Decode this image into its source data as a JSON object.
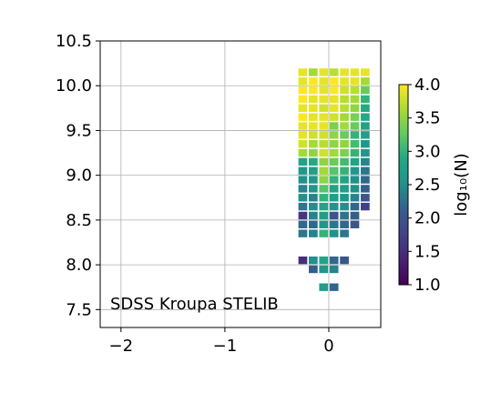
{
  "chart_data": {
    "type": "heatmap",
    "annotation": "SDSS Kroupa STELIB",
    "xlim": [
      -2.2,
      0.5
    ],
    "ylim": [
      7.3,
      10.5
    ],
    "x_ticks": [
      -2,
      -1,
      0
    ],
    "x_tick_labels": [
      "−2",
      "−1",
      "0"
    ],
    "y_ticks": [
      7.5,
      8.0,
      8.5,
      9.0,
      9.5,
      10.0,
      10.5
    ],
    "y_tick_labels": [
      "7.5",
      "8.0",
      "8.5",
      "9.0",
      "9.5",
      "10.0",
      "10.5"
    ],
    "grid": true,
    "x_cells": [
      -0.25,
      -0.15,
      -0.05,
      0.05,
      0.15,
      0.25,
      0.35
    ],
    "y_cells": [
      7.75,
      7.85,
      7.95,
      8.05,
      8.15,
      8.25,
      8.35,
      8.45,
      8.55,
      8.65,
      8.75,
      8.85,
      8.95,
      9.05,
      9.15,
      9.25,
      9.35,
      9.45,
      9.55,
      9.65,
      9.75,
      9.85,
      9.95,
      10.05,
      10.15
    ],
    "cell_width": 0.085,
    "cell_height": 0.085,
    "colorbar": {
      "label": "log₁₀(N)",
      "range": [
        1.0,
        4.0
      ],
      "ticks": [
        1.0,
        1.5,
        2.0,
        2.5,
        3.0,
        3.5,
        4.0
      ],
      "tick_labels": [
        "1.0",
        "1.5",
        "2.0",
        "2.5",
        "3.0",
        "3.5",
        "4.0"
      ],
      "colormap": "viridis"
    },
    "values_by_row": [
      [
        null,
        null,
        2.7,
        2.2,
        null,
        null,
        null
      ],
      [
        null,
        null,
        null,
        null,
        null,
        null,
        null
      ],
      [
        null,
        2.1,
        2.6,
        2.4,
        null,
        null,
        null
      ],
      [
        1.5,
        2.5,
        2.8,
        2.2,
        2.0,
        null,
        null
      ],
      [
        null,
        null,
        null,
        null,
        null,
        null,
        null
      ],
      [
        null,
        null,
        null,
        null,
        null,
        null,
        null
      ],
      [
        2.3,
        2.4,
        3.0,
        2.5,
        2.3,
        null,
        null
      ],
      [
        2.2,
        2.2,
        2.6,
        2.3,
        2.2,
        2.0,
        null
      ],
      [
        1.6,
        2.4,
        2.7,
        2.0,
        2.3,
        2.1,
        null
      ],
      [
        2.3,
        2.5,
        2.8,
        2.6,
        2.5,
        2.2,
        1.7
      ],
      [
        2.5,
        2.4,
        3.0,
        2.7,
        2.6,
        2.4,
        2.0
      ],
      [
        2.4,
        2.6,
        3.2,
        2.8,
        2.7,
        2.5,
        2.1
      ],
      [
        2.5,
        2.6,
        3.5,
        3.0,
        2.8,
        2.5,
        2.2
      ],
      [
        2.6,
        2.7,
        3.6,
        3.2,
        3.0,
        2.6,
        2.3
      ],
      [
        2.8,
        2.9,
        3.5,
        3.3,
        3.1,
        2.8,
        2.4
      ],
      [
        3.6,
        3.5,
        3.8,
        3.6,
        3.4,
        3.0,
        2.6
      ],
      [
        3.8,
        3.6,
        3.7,
        3.5,
        3.5,
        3.1,
        2.6
      ],
      [
        3.9,
        3.8,
        3.8,
        3.5,
        3.3,
        3.0,
        2.7
      ],
      [
        3.9,
        3.9,
        3.9,
        3.4,
        3.6,
        3.3,
        2.8
      ],
      [
        4.0,
        3.9,
        3.9,
        3.8,
        3.6,
        3.4,
        2.9
      ],
      [
        3.9,
        3.9,
        3.8,
        3.9,
        3.7,
        3.5,
        2.9
      ],
      [
        4.0,
        3.9,
        3.9,
        3.9,
        3.7,
        3.6,
        3.0
      ],
      [
        4.0,
        4.0,
        3.9,
        4.0,
        3.8,
        3.7,
        3.3
      ],
      [
        3.9,
        4.0,
        3.9,
        4.0,
        3.9,
        3.9,
        3.6
      ],
      [
        3.9,
        3.6,
        3.9,
        3.7,
        3.9,
        3.9,
        3.9
      ]
    ]
  }
}
